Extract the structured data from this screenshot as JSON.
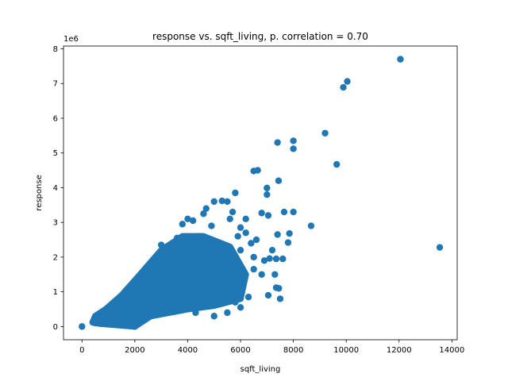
{
  "chart_data": {
    "type": "scatter",
    "title": "response vs. sqft_living, p. correlation = 0.70",
    "xlabel": "sqft_living",
    "ylabel": "response",
    "y_offset_label": "1e6",
    "xlim": [
      -700,
      14200
    ],
    "ylim": [
      -0.38,
      8.08
    ],
    "x_ticks": [
      0,
      2000,
      4000,
      6000,
      8000,
      10000,
      12000,
      14000
    ],
    "x_tick_labels": [
      "0",
      "2000",
      "4000",
      "6000",
      "8000",
      "10000",
      "12000",
      "14000"
    ],
    "y_ticks": [
      0,
      1,
      2,
      3,
      4,
      5,
      6,
      7,
      8
    ],
    "y_tick_labels": [
      "0",
      "1",
      "2",
      "3",
      "4",
      "5",
      "6",
      "7",
      "8"
    ],
    "y_scale_multiplier": 1000000,
    "grid": false,
    "legend": "none",
    "marker_color": "#1f77b4",
    "series": [
      {
        "points": [
          [
            0,
            0.0
          ],
          [
            2000,
            0.0
          ],
          [
            12050,
            7.7
          ],
          [
            10040,
            7.06
          ],
          [
            9890,
            6.89
          ],
          [
            9200,
            5.57
          ],
          [
            9640,
            4.67
          ],
          [
            13540,
            2.28
          ],
          [
            7400,
            5.3
          ],
          [
            8000,
            5.35
          ],
          [
            8000,
            5.12
          ],
          [
            6500,
            4.48
          ],
          [
            6650,
            4.5
          ],
          [
            7440,
            4.2
          ],
          [
            7000,
            3.99
          ],
          [
            7000,
            3.8
          ],
          [
            8670,
            2.9
          ],
          [
            8000,
            3.3
          ],
          [
            7650,
            3.3
          ],
          [
            7400,
            2.65
          ],
          [
            7050,
            3.2
          ],
          [
            6800,
            3.27
          ],
          [
            7850,
            2.68
          ],
          [
            7800,
            2.42
          ],
          [
            7200,
            2.2
          ],
          [
            7350,
            1.95
          ],
          [
            7600,
            1.95
          ],
          [
            7100,
            1.96
          ],
          [
            7450,
            1.1
          ],
          [
            7050,
            0.9
          ],
          [
            7350,
            1.12
          ],
          [
            7500,
            0.8
          ],
          [
            7300,
            1.5
          ],
          [
            6800,
            1.5
          ],
          [
            6500,
            1.65
          ],
          [
            6600,
            2.5
          ],
          [
            6200,
            2.7
          ],
          [
            6200,
            3.1
          ],
          [
            6000,
            2.85
          ],
          [
            5700,
            3.3
          ],
          [
            5600,
            3.1
          ],
          [
            5800,
            3.85
          ],
          [
            5300,
            3.62
          ],
          [
            5500,
            3.6
          ],
          [
            5000,
            3.6
          ],
          [
            4700,
            3.4
          ],
          [
            4600,
            3.25
          ],
          [
            4200,
            3.05
          ],
          [
            4000,
            3.1
          ],
          [
            3800,
            2.95
          ],
          [
            4400,
            2.6
          ],
          [
            4900,
            2.9
          ],
          [
            5900,
            2.6
          ],
          [
            6400,
            2.4
          ],
          [
            6900,
            1.9
          ],
          [
            6300,
            0.85
          ],
          [
            6000,
            0.55
          ],
          [
            5800,
            0.7
          ],
          [
            5500,
            0.4
          ],
          [
            5000,
            0.3
          ],
          [
            4300,
            0.4
          ],
          [
            4400,
            2.3
          ],
          [
            3600,
            2.55
          ],
          [
            3800,
            2.4
          ],
          [
            3000,
            2.35
          ],
          [
            3500,
            2.05
          ],
          [
            2900,
            1.8
          ],
          [
            2600,
            1.55
          ],
          [
            2400,
            1.3
          ],
          [
            2200,
            1.1
          ],
          [
            1900,
            0.9
          ],
          [
            1600,
            0.7
          ],
          [
            1300,
            0.5
          ],
          [
            900,
            0.35
          ],
          [
            600,
            0.25
          ],
          [
            700,
            0.15
          ],
          [
            500,
            0.1
          ],
          [
            1000,
            0.2
          ],
          [
            1500,
            0.3
          ],
          [
            2000,
            0.45
          ],
          [
            2500,
            0.6
          ],
          [
            3000,
            0.75
          ],
          [
            3500,
            0.9
          ],
          [
            4000,
            1.05
          ],
          [
            4500,
            1.3
          ],
          [
            5000,
            1.5
          ],
          [
            5500,
            1.9
          ],
          [
            6000,
            2.2
          ],
          [
            6500,
            2.0
          ],
          [
            6000,
            1.3
          ],
          [
            5500,
            1.1
          ],
          [
            5000,
            0.9
          ],
          [
            4500,
            0.7
          ],
          [
            4000,
            0.55
          ],
          [
            3500,
            0.45
          ],
          [
            3000,
            0.38
          ],
          [
            2500,
            0.3
          ],
          [
            1800,
            0.18
          ],
          [
            1200,
            0.12
          ],
          [
            800,
            0.08
          ]
        ]
      }
    ]
  }
}
